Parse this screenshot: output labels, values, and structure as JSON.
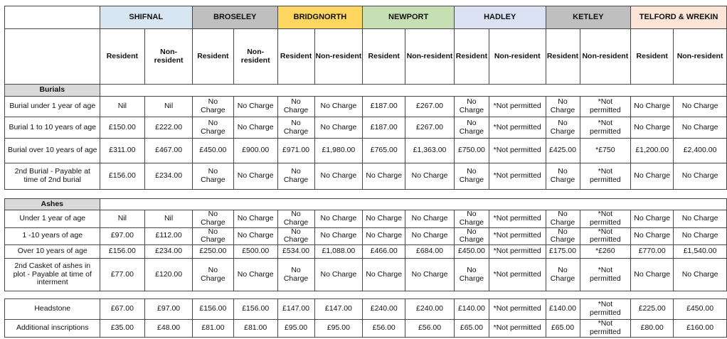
{
  "table": {
    "towns": [
      {
        "name": "SHIFNAL",
        "color": "#d8e6f1",
        "subs": [
          "Resident",
          "Non-resident"
        ]
      },
      {
        "name": "BROSELEY",
        "color": "#bfbfbf",
        "subs": [
          "Resident",
          "Non-resident"
        ]
      },
      {
        "name": "BRIDGNORTH",
        "color": "#fcd65f",
        "subs": [
          "Resident",
          "Non-resident"
        ]
      },
      {
        "name": "NEWPORT",
        "color": "#c6e0b4",
        "subs": [
          "Resident",
          "Non-resident"
        ]
      },
      {
        "name": "HADLEY",
        "color": "#d9e1f2",
        "subs": [
          "Resident",
          "Non-resident"
        ]
      },
      {
        "name": "KETLEY",
        "color": "#bfbfbf",
        "subs": [
          "Resident",
          "Non-resident"
        ]
      },
      {
        "name": "TELFORD & WREKIN",
        "color": "#fce4d6",
        "subs": [
          "Resident",
          "Non-resident"
        ]
      }
    ],
    "section_title_color": "#d9d9d9",
    "border_color": "#474747",
    "sections": [
      {
        "title": "Burials",
        "rows": [
          {
            "label": "Burial under 1 year of age",
            "values": [
              "Nil",
              "Nil",
              "No Charge",
              "No Charge",
              "No Charge",
              "No Charge",
              "£187.00",
              "£267.00",
              "No Charge",
              "*Not permitted",
              "No Charge",
              "*Not permitted",
              "No Charge",
              "No Charge"
            ]
          },
          {
            "label": "Burial 1 to 10 years of age",
            "values": [
              "£150.00",
              "£222.00",
              "No Charge",
              "No Charge",
              "No Charge",
              "No Charge",
              "£187.00",
              "£267.00",
              "No Charge",
              "*Not permitted",
              "No Charge",
              "*Not permitted",
              "No Charge",
              "No Charge"
            ]
          },
          {
            "label": "Burial over 10 years of age",
            "values": [
              "£311.00",
              "£467.00",
              "£450.00",
              "£900.00",
              "£971.00",
              "£1,980.00",
              "£765.00",
              "£1,363.00",
              "£750.00",
              "*Not permitted",
              "£425.00",
              "*£750",
              "£1,200.00",
              "£2,400.00"
            ]
          },
          {
            "label": "2nd Burial - Payable at time of 2nd burial",
            "values": [
              "£156.00",
              "£234.00",
              "No Charge",
              "No Charge",
              "No Charge",
              "No Charge",
              "No Charge",
              "No Charge",
              "No Charge",
              "*Not permitted",
              "No Charge",
              "*Not permitted",
              "No Charge",
              "No Charge"
            ]
          }
        ]
      },
      {
        "title": "Ashes",
        "rows": [
          {
            "label": "Under 1 year of age",
            "values": [
              "Nil",
              "Nil",
              "No Charge",
              "No Charge",
              "No Charge",
              "No Charge",
              "No Charge",
              "No Charge",
              "No Charge",
              "*Not permitted",
              "No Charge",
              "*Not permitted",
              "No Charge",
              "No Charge"
            ]
          },
          {
            "label": "1 -10 years of age",
            "values": [
              "£97.00",
              "£112.00",
              "No Charge",
              "No Charge",
              "No Charge",
              "No Charge",
              "No Charge",
              "No Charge",
              "No Charge",
              "*Not permitted",
              "No Charge",
              "*Not permitted",
              "No Charge",
              "No Charge"
            ]
          },
          {
            "label": "Over 10 years of age",
            "values": [
              "£156.00",
              "£234.00",
              "£250.00",
              "£500.00",
              "£534.00",
              "£1,088.00",
              "£466.00",
              "£684.00",
              "£450.00",
              "*Not permitted",
              "£175.00",
              "*£260",
              "£770.00",
              "£1,540.00"
            ]
          },
          {
            "label": "2nd Casket of ashes in plot - Payable at time of interment",
            "values": [
              "£77.00",
              "£120.00",
              "No Charge",
              "No Charge",
              "No Charge",
              "No Charge",
              "No Charge",
              "No Charge",
              "No Charge",
              "*Not permitted",
              "No Charge",
              "*Not permitted",
              "No Charge",
              "No Charge"
            ]
          }
        ]
      },
      {
        "title": null,
        "rows": [
          {
            "label": "Headstone",
            "values": [
              "£67.00",
              "£97.00",
              "£156.00",
              "£156.00",
              "£147.00",
              "£147.00",
              "£240.00",
              "£240.00",
              "£140.00",
              "*Not permitted",
              "£140.00",
              "*Not permitted",
              "£225.00",
              "£450.00"
            ]
          },
          {
            "label": "Additional inscriptions",
            "values": [
              "£35.00",
              "£48.00",
              "£81.00",
              "£81.00",
              "£95.00",
              "£95.00",
              "£56.00",
              "£56.00",
              "£65.00",
              "*Not permitted",
              "£65.00",
              "*Not permitted",
              "£80.00",
              "£160.00"
            ]
          }
        ]
      }
    ]
  }
}
